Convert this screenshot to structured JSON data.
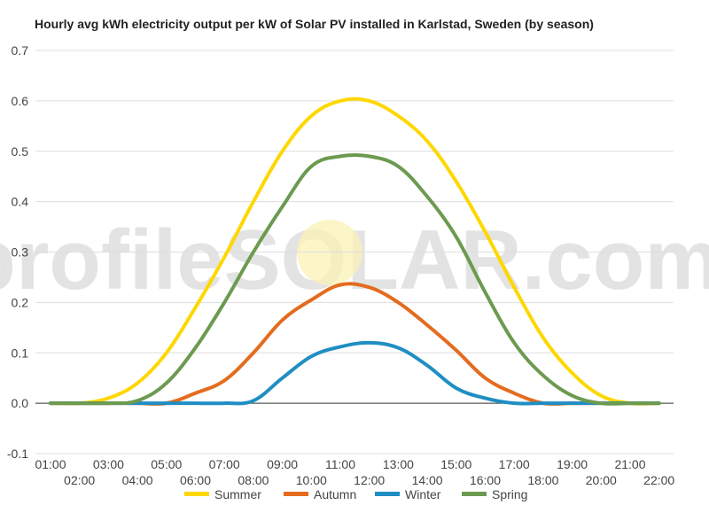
{
  "chart_data": {
    "type": "line",
    "title": "Hourly avg kWh electricity output per kW of Solar PV installed in Karlstad, Sweden (by season)",
    "xlabel": "",
    "ylabel": "",
    "ylim": [
      -0.1,
      0.7
    ],
    "yticks": [
      "-0.1",
      "0.0",
      "0.1",
      "0.2",
      "0.3",
      "0.4",
      "0.5",
      "0.6",
      "0.7"
    ],
    "categories": [
      "01:00",
      "02:00",
      "03:00",
      "04:00",
      "05:00",
      "06:00",
      "07:00",
      "08:00",
      "09:00",
      "10:00",
      "11:00",
      "12:00",
      "13:00",
      "14:00",
      "15:00",
      "16:00",
      "17:00",
      "18:00",
      "19:00",
      "20:00",
      "21:00",
      "22:00"
    ],
    "grid": true,
    "legend_position": "bottom",
    "watermark": "profileSOLAR.com",
    "series": [
      {
        "name": "Summer",
        "color": "#FFD700",
        "values": [
          0,
          0,
          0.01,
          0.04,
          0.1,
          0.19,
          0.29,
          0.4,
          0.5,
          0.57,
          0.6,
          0.6,
          0.57,
          0.52,
          0.44,
          0.34,
          0.23,
          0.13,
          0.06,
          0.015,
          0,
          0
        ]
      },
      {
        "name": "Autumn",
        "color": "#E36C1F",
        "values": [
          0,
          0,
          0,
          0,
          0,
          0.02,
          0.045,
          0.1,
          0.165,
          0.205,
          0.235,
          0.23,
          0.2,
          0.155,
          0.105,
          0.05,
          0.02,
          0,
          0,
          0,
          0,
          0
        ]
      },
      {
        "name": "Winter",
        "color": "#1F8EC3",
        "values": [
          0,
          0,
          0,
          0,
          0,
          0,
          0,
          0.005,
          0.05,
          0.093,
          0.112,
          0.12,
          0.11,
          0.075,
          0.03,
          0.01,
          0,
          0,
          0,
          0,
          0,
          0
        ]
      },
      {
        "name": "Spring",
        "color": "#6C9A50",
        "values": [
          0,
          0,
          0,
          0.005,
          0.04,
          0.11,
          0.2,
          0.3,
          0.39,
          0.47,
          0.49,
          0.49,
          0.47,
          0.41,
          0.33,
          0.22,
          0.12,
          0.055,
          0.015,
          0,
          0,
          0
        ]
      }
    ]
  }
}
